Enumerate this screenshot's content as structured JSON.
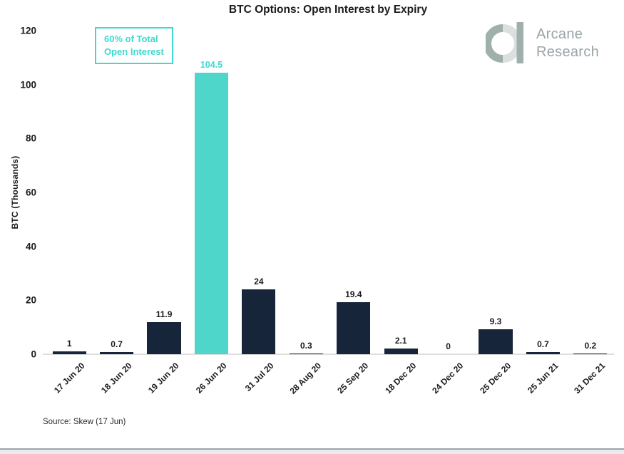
{
  "logo": {
    "line1": "Arcane",
    "line2": "Research",
    "ring_dark": "#9fafac",
    "ring_light": "#dbdfde"
  },
  "annotation": {
    "line1": "60% of Total",
    "line2": "Open Interest"
  },
  "chart_data": {
    "type": "bar",
    "title": "BTC Options: Open Interest by Expiry",
    "ylabel": "BTC (Thousands)",
    "xlabel": "",
    "categories": [
      "17 Jun 20",
      "18 Jun 20",
      "19 Jun 20",
      "26 Jun 20",
      "31 Jul 20",
      "28 Aug 20",
      "25 Sep 20",
      "18 Dec 20",
      "24 Dec 20",
      "25 Dec 20",
      "25 Jun 21",
      "31 Dec 21"
    ],
    "values": [
      1,
      0.7,
      11.9,
      104.5,
      24,
      0.3,
      19.4,
      2.1,
      0,
      9.3,
      0.7,
      0.2
    ],
    "value_labels": [
      "1",
      "0.7",
      "11.9",
      "104.5",
      "24",
      "0.3",
      "19.4",
      "2.1",
      "0",
      "9.3",
      "0.7",
      "0.2"
    ],
    "highlight_index": 3,
    "ylim": [
      0,
      120
    ],
    "yticks": [
      "0",
      "20",
      "40",
      "60",
      "80",
      "100",
      "120"
    ],
    "grid": false,
    "legend": false,
    "colors": {
      "bar": "#16253a",
      "highlight_bar": "#4fd6cb",
      "accent_text": "#3edad0"
    },
    "annotation_text": "60% of Total Open Interest",
    "source": "Source: Skew (17 Jun)"
  }
}
